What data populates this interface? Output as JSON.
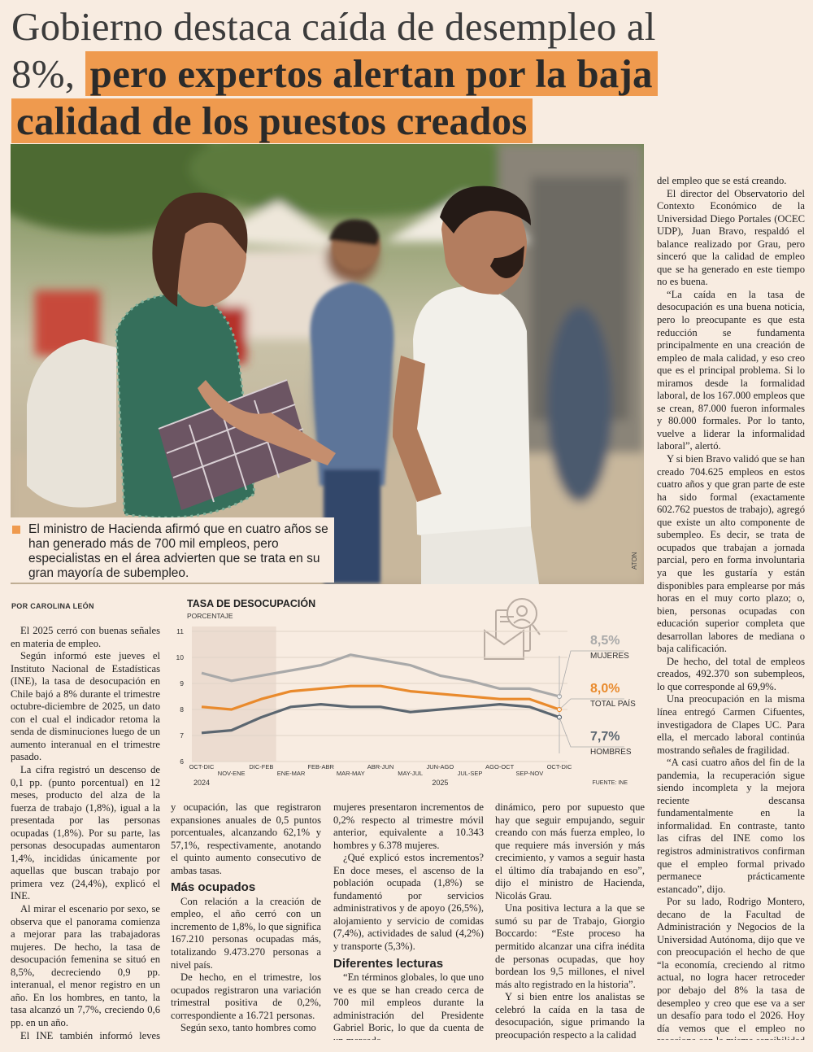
{
  "headline_plain": "Gobierno destaca caída de desempleo al 8%,",
  "headline_highlight": "pero expertos alertan por la baja calidad de los puestos creados",
  "photo_caption": "El ministro de Hacienda afirmó que en cuatro años se han generado más de 700 mil empleos, pero especialistas en el área advierten que se trata en su gran mayoría de subempleo.",
  "photo_credit": "ATON",
  "byline": "POR CAROLINA LEÓN",
  "columns": [
    [
      {
        "p": "El 2025 cerró con buenas señales en materia de empleo."
      },
      {
        "p": "Según informó este jueves el Instituto Nacional de Estadísticas (INE), la tasa de desocupación en Chile bajó a 8% durante el trimestre octubre-diciembre de 2025, un dato con el cual el indicador retoma la senda de disminuciones luego de un aumento interanual en el trimestre pasado."
      },
      {
        "p": "La cifra registró un descenso de 0,1 pp. (punto porcentual) en 12 meses, producto del alza de la fuerza de trabajo (1,8%), igual a la presentada por las personas ocupadas (1,8%). Por su parte, las personas desocupadas aumentaron 1,4%, incididas únicamente por aquellas que buscan trabajo por primera vez (24,4%), explicó el INE."
      },
      {
        "p": "Al mirar el escenario por sexo, se observa que el panorama comienza a mejorar para las trabajadoras mujeres. De hecho, la tasa de desocupación femenina se situó en 8,5%, decreciendo 0,9 pp. interanual, el menor registro en un año. En los hombres, en tanto, la tasa alcanzó un 7,7%, creciendo 0,6 pp. en un año."
      },
      {
        "p": "El INE también informó leves mejoras en las tasas de participación"
      }
    ],
    [
      {
        "c": "y ocupación, las que registraron expansiones anuales de 0,5 puntos porcentuales, alcanzando 62,1% y 57,1%, respectivamente, anotando el quinto aumento consecutivo de ambas tasas."
      },
      {
        "h": "Más ocupados"
      },
      {
        "p": "Con relación a la creación de empleo, el año cerró con un incremento de 1,8%, lo que significa 167.210 personas ocupadas más, totalizando 9.473.270 personas a nivel país."
      },
      {
        "p": "De hecho, en el trimestre, los ocupados registraron una variación trimestral positiva de 0,2%, correspondiente a 16.721 personas."
      },
      {
        "p": "Según sexo, tanto hombres como"
      }
    ],
    [
      {
        "c": "mujeres presentaron incrementos de 0,2% respecto al trimestre móvil anterior, equivalente a 10.343 hombres y 6.378 mujeres."
      },
      {
        "p": "¿Qué explicó estos incrementos? En doce meses, el ascenso de la población ocupada (1,8%) se fundamentó por servicios administrativos y de apoyo (26,5%), alojamiento y servicio de comidas (7,4%), actividades de salud (4,2%) y transporte (5,3%)."
      },
      {
        "h": "Diferentes lecturas"
      },
      {
        "p": "“En términos globales, lo que uno ve es que se han creado cerca de 700 mil empleos durante la administración del Presidente Gabriel Boric, lo que da cuenta de un mercado"
      }
    ],
    [
      {
        "c": "dinámico, pero por supuesto que hay que seguir empujando, seguir creando con más fuerza empleo, lo que requiere más inversión y más crecimiento, y vamos a seguir hasta el último día trabajando en eso”, dijo el ministro de Hacienda, Nicolás Grau."
      },
      {
        "p": "Una positiva lectura a la que se sumó su par de Trabajo, Giorgio Boccardo: “Este proceso ha permitido alcanzar una cifra inédita de personas ocupadas, que hoy bordean los 9,5 millones, el nivel más alto registrado en la historia”."
      },
      {
        "p": "Y si bien entre los analistas se celebró la caída en la tasa de desocupación, sigue primando la preocupación respecto a la calidad"
      }
    ],
    [
      {
        "c": "del empleo que se está creando."
      },
      {
        "p": "El director del Observatorio del Contexto Económico de la Universidad Diego Portales (OCEC UDP), Juan Bravo, respaldó el balance realizado por Grau, pero sinceró que la calidad de empleo que se ha generado en este tiempo no es buena."
      },
      {
        "p": "“La caída en la tasa de desocupación es una buena noticia, pero lo preocupante es que esta reducción se fundamenta principalmente en una creación de empleo de mala calidad, y eso creo que es el principal problema. Si lo miramos desde la formalidad laboral, de los 167.000 empleos que se crean, 87.000 fueron informales y 80.000 formales. Por lo tanto, vuelve a liderar la informalidad laboral”, alertó."
      },
      {
        "p": "Y si bien Bravo validó que se han creado 704.625 empleos en estos cuatro años y que gran parte de este ha sido formal (exactamente 602.762 puestos de trabajo), agregó que existe un alto componente de subempleo. Es decir, se trata de ocupados que trabajan a jornada parcial, pero en forma involuntaria ya que les gustaría y están disponibles para emplearse por más horas en el muy corto plazo; o, bien, personas ocupadas con educación superior completa que desarrollan labores de mediana o baja calificación."
      },
      {
        "p": "De hecho, del total de empleos creados, 492.370 son subempleos, lo que corresponde al 69,9%."
      },
      {
        "p": "Una preocupación en la misma línea entregó Carmen Cifuentes, investigadora de Clapes UC. Para ella, el mercado laboral continúa mostrando señales de fragilidad."
      },
      {
        "p": "“A casi cuatro años del fin de la pandemia, la recuperación sigue siendo incompleta y la mejora reciente descansa fundamentalmente en la informalidad. En contraste, tanto las cifras del INE como los registros administrativos confirman que el empleo formal privado permanece prácticamente estancado”, dijo."
      },
      {
        "p": "Por su lado, Rodrigo Montero, decano de la Facultad de Administración y Negocios de la Universidad Autónoma, dijo que ve con preocupación el hecho de que “la economía, creciendo al ritmo actual, no logra hacer retroceder por debajo del 8% la tasa de desempleo y creo que ese va a ser un desafío para todo el 2026. Hoy día vemos que el empleo no reacciona con la misma sensibilidad de lo que hacía antaño respecto del ritmo de actividad económica”."
      }
    ]
  ],
  "chart_data": {
    "type": "line",
    "title": "TASA DE DESOCUPACIÓN",
    "subtitle": "PORCENTAJE",
    "source": "FUENTE: INE",
    "categories": [
      "OCT-DIC",
      "NOV-ENE",
      "DIC-FEB",
      "ENE-MAR",
      "FEB-ABR",
      "MAR-MAY",
      "ABR-JUN",
      "MAY-JUL",
      "JUN-AGO",
      "JUL-SEP",
      "AGO-OCT",
      "SEP-NOV",
      "OCT-DIC"
    ],
    "year_labels": [
      "2024",
      "2025"
    ],
    "ylim": [
      6,
      11
    ],
    "yticks": [
      6,
      7,
      8,
      9,
      10,
      11
    ],
    "grid": true,
    "series": [
      {
        "name": "MUJERES",
        "color": "#a9a9a9",
        "values": [
          9.4,
          9.1,
          9.3,
          9.5,
          9.7,
          10.1,
          9.9,
          9.7,
          9.3,
          9.1,
          8.8,
          8.8,
          8.5
        ],
        "value_labels": [
          null,
          null,
          null,
          null,
          null,
          null,
          null,
          null,
          null,
          null,
          null,
          null,
          "8,5%"
        ]
      },
      {
        "name": "TOTAL PAÍS",
        "color": "#e98a2c",
        "values": [
          8.1,
          8.0,
          8.4,
          8.7,
          8.8,
          8.9,
          8.9,
          8.7,
          8.6,
          8.5,
          8.4,
          8.4,
          8.0
        ],
        "value_labels": [
          null,
          null,
          null,
          null,
          null,
          null,
          null,
          null,
          null,
          null,
          null,
          null,
          "8,0%"
        ]
      },
      {
        "name": "HOMBRES",
        "color": "#5b6670",
        "values": [
          7.1,
          7.2,
          7.7,
          8.1,
          8.2,
          8.1,
          8.1,
          7.9,
          8.0,
          8.1,
          8.2,
          8.1,
          7.7
        ],
        "value_labels": [
          null,
          null,
          null,
          null,
          null,
          null,
          null,
          null,
          null,
          null,
          null,
          null,
          "7,7%"
        ]
      }
    ]
  }
}
